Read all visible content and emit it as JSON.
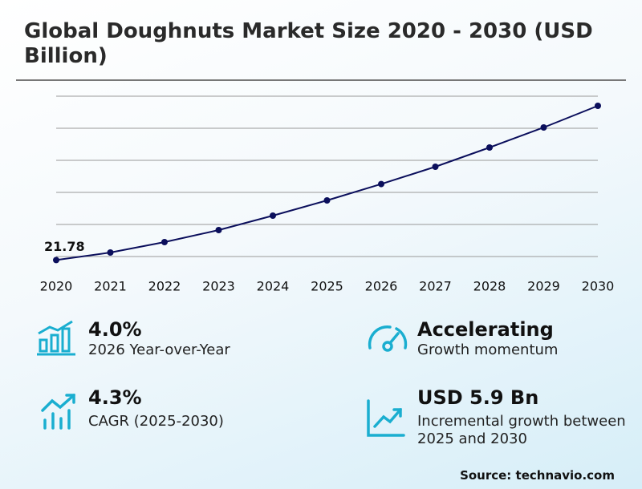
{
  "chart_data": {
    "type": "line",
    "title": "Global Doughnuts Market Size 2020 - 2030 (USD Billion)",
    "categories": [
      "2020",
      "2021",
      "2022",
      "2023",
      "2024",
      "2025",
      "2026",
      "2027",
      "2028",
      "2029",
      "2030"
    ],
    "series": [
      {
        "color": "#0b0f5c",
        "values": [
          21.78,
          22.25,
          22.9,
          23.65,
          24.55,
          25.5,
          26.52,
          27.6,
          28.8,
          30.05,
          31.4
        ]
      }
    ],
    "ylim": [
      21,
      32
    ],
    "yticks": [
      22,
      24,
      26,
      28,
      30,
      32
    ],
    "grid": true,
    "ytick_labels": false
  },
  "stats": [
    {
      "value": "4.0%",
      "label": "2026 Year-over-Year"
    },
    {
      "value": "Accelerating",
      "label": "Growth momentum"
    },
    {
      "value": "4.3%",
      "label": "CAGR (2025-2030)"
    },
    {
      "value": "USD 5.9 Bn",
      "label": "Incremental growth between 2025 and 2030"
    }
  ],
  "source": "Source: technavio.com"
}
